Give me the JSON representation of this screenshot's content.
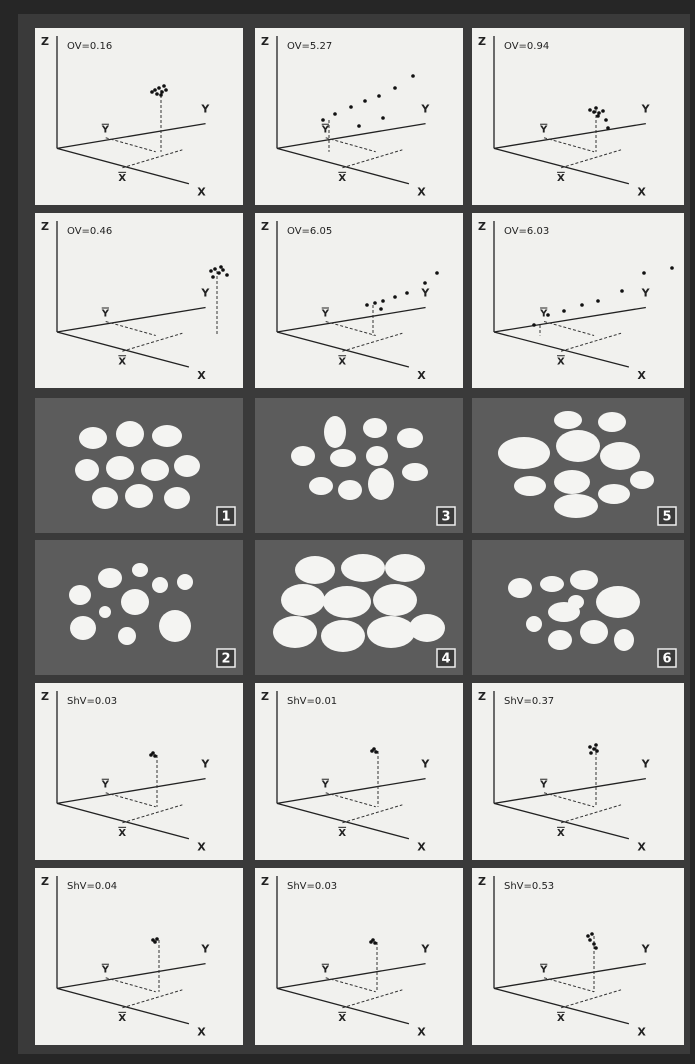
{
  "axis_labels": {
    "z": "Z",
    "y": "Y",
    "x": "X",
    "y_mean": "Y",
    "x_mean": "X"
  },
  "plots_top": [
    {
      "label": "OV=0.16"
    },
    {
      "label": "OV=5.27"
    },
    {
      "label": "OV=0.94"
    },
    {
      "label": "OV=0.46"
    },
    {
      "label": "OV=6.05"
    },
    {
      "label": "OV=6.03"
    }
  ],
  "samples": [
    {
      "label": "1"
    },
    {
      "label": "3"
    },
    {
      "label": "5"
    },
    {
      "label": "2"
    },
    {
      "label": "4"
    },
    {
      "label": "6"
    }
  ],
  "plots_bottom": [
    {
      "label": "ShV=0.03"
    },
    {
      "label": "ShV=0.01"
    },
    {
      "label": "ShV=0.37"
    },
    {
      "label": "ShV=0.04"
    },
    {
      "label": "ShV=0.03"
    },
    {
      "label": "ShV=0.53"
    }
  ]
}
